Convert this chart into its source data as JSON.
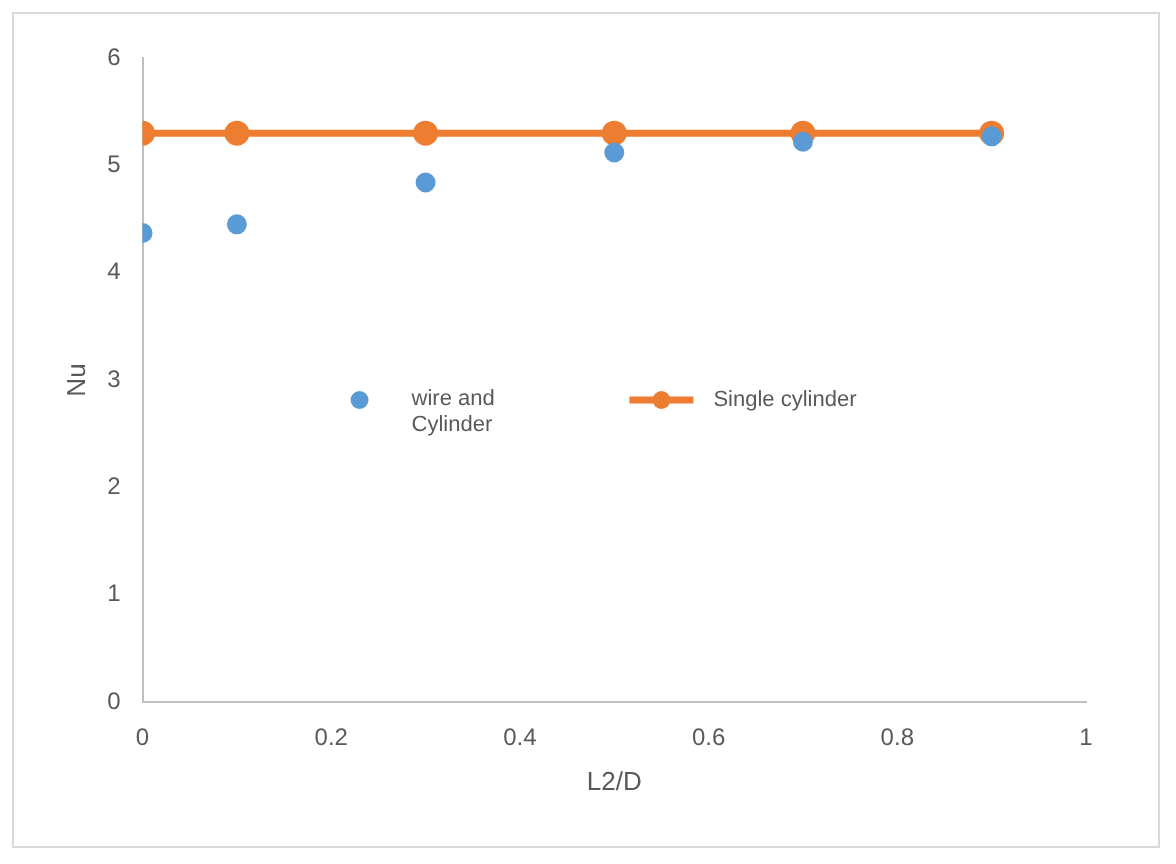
{
  "chart_data": {
    "type": "scatter",
    "xlabel": "L2/D",
    "ylabel": "Nu",
    "x": [
      0,
      0.1,
      0.3,
      0.5,
      0.7,
      0.9
    ],
    "series": [
      {
        "name": "wire and Cylinder",
        "color": "#5b9bd5",
        "marker": "circle",
        "values": [
          4.37,
          4.45,
          4.84,
          5.12,
          5.22,
          5.27
        ]
      },
      {
        "name": "Single cylinder",
        "type": "line",
        "color": "#ed7d31",
        "marker": "circle",
        "line_style": "solid",
        "values": [
          5.3,
          5.3,
          5.3,
          5.3,
          5.3,
          5.3
        ]
      }
    ],
    "xlim": [
      0,
      1
    ],
    "xticks": [
      0,
      0.2,
      0.4,
      0.6,
      0.8,
      1
    ],
    "ylim": [
      0,
      6
    ],
    "yticks": [
      0,
      1,
      2,
      3,
      4,
      5,
      6
    ],
    "grid": false,
    "legend": "center"
  }
}
